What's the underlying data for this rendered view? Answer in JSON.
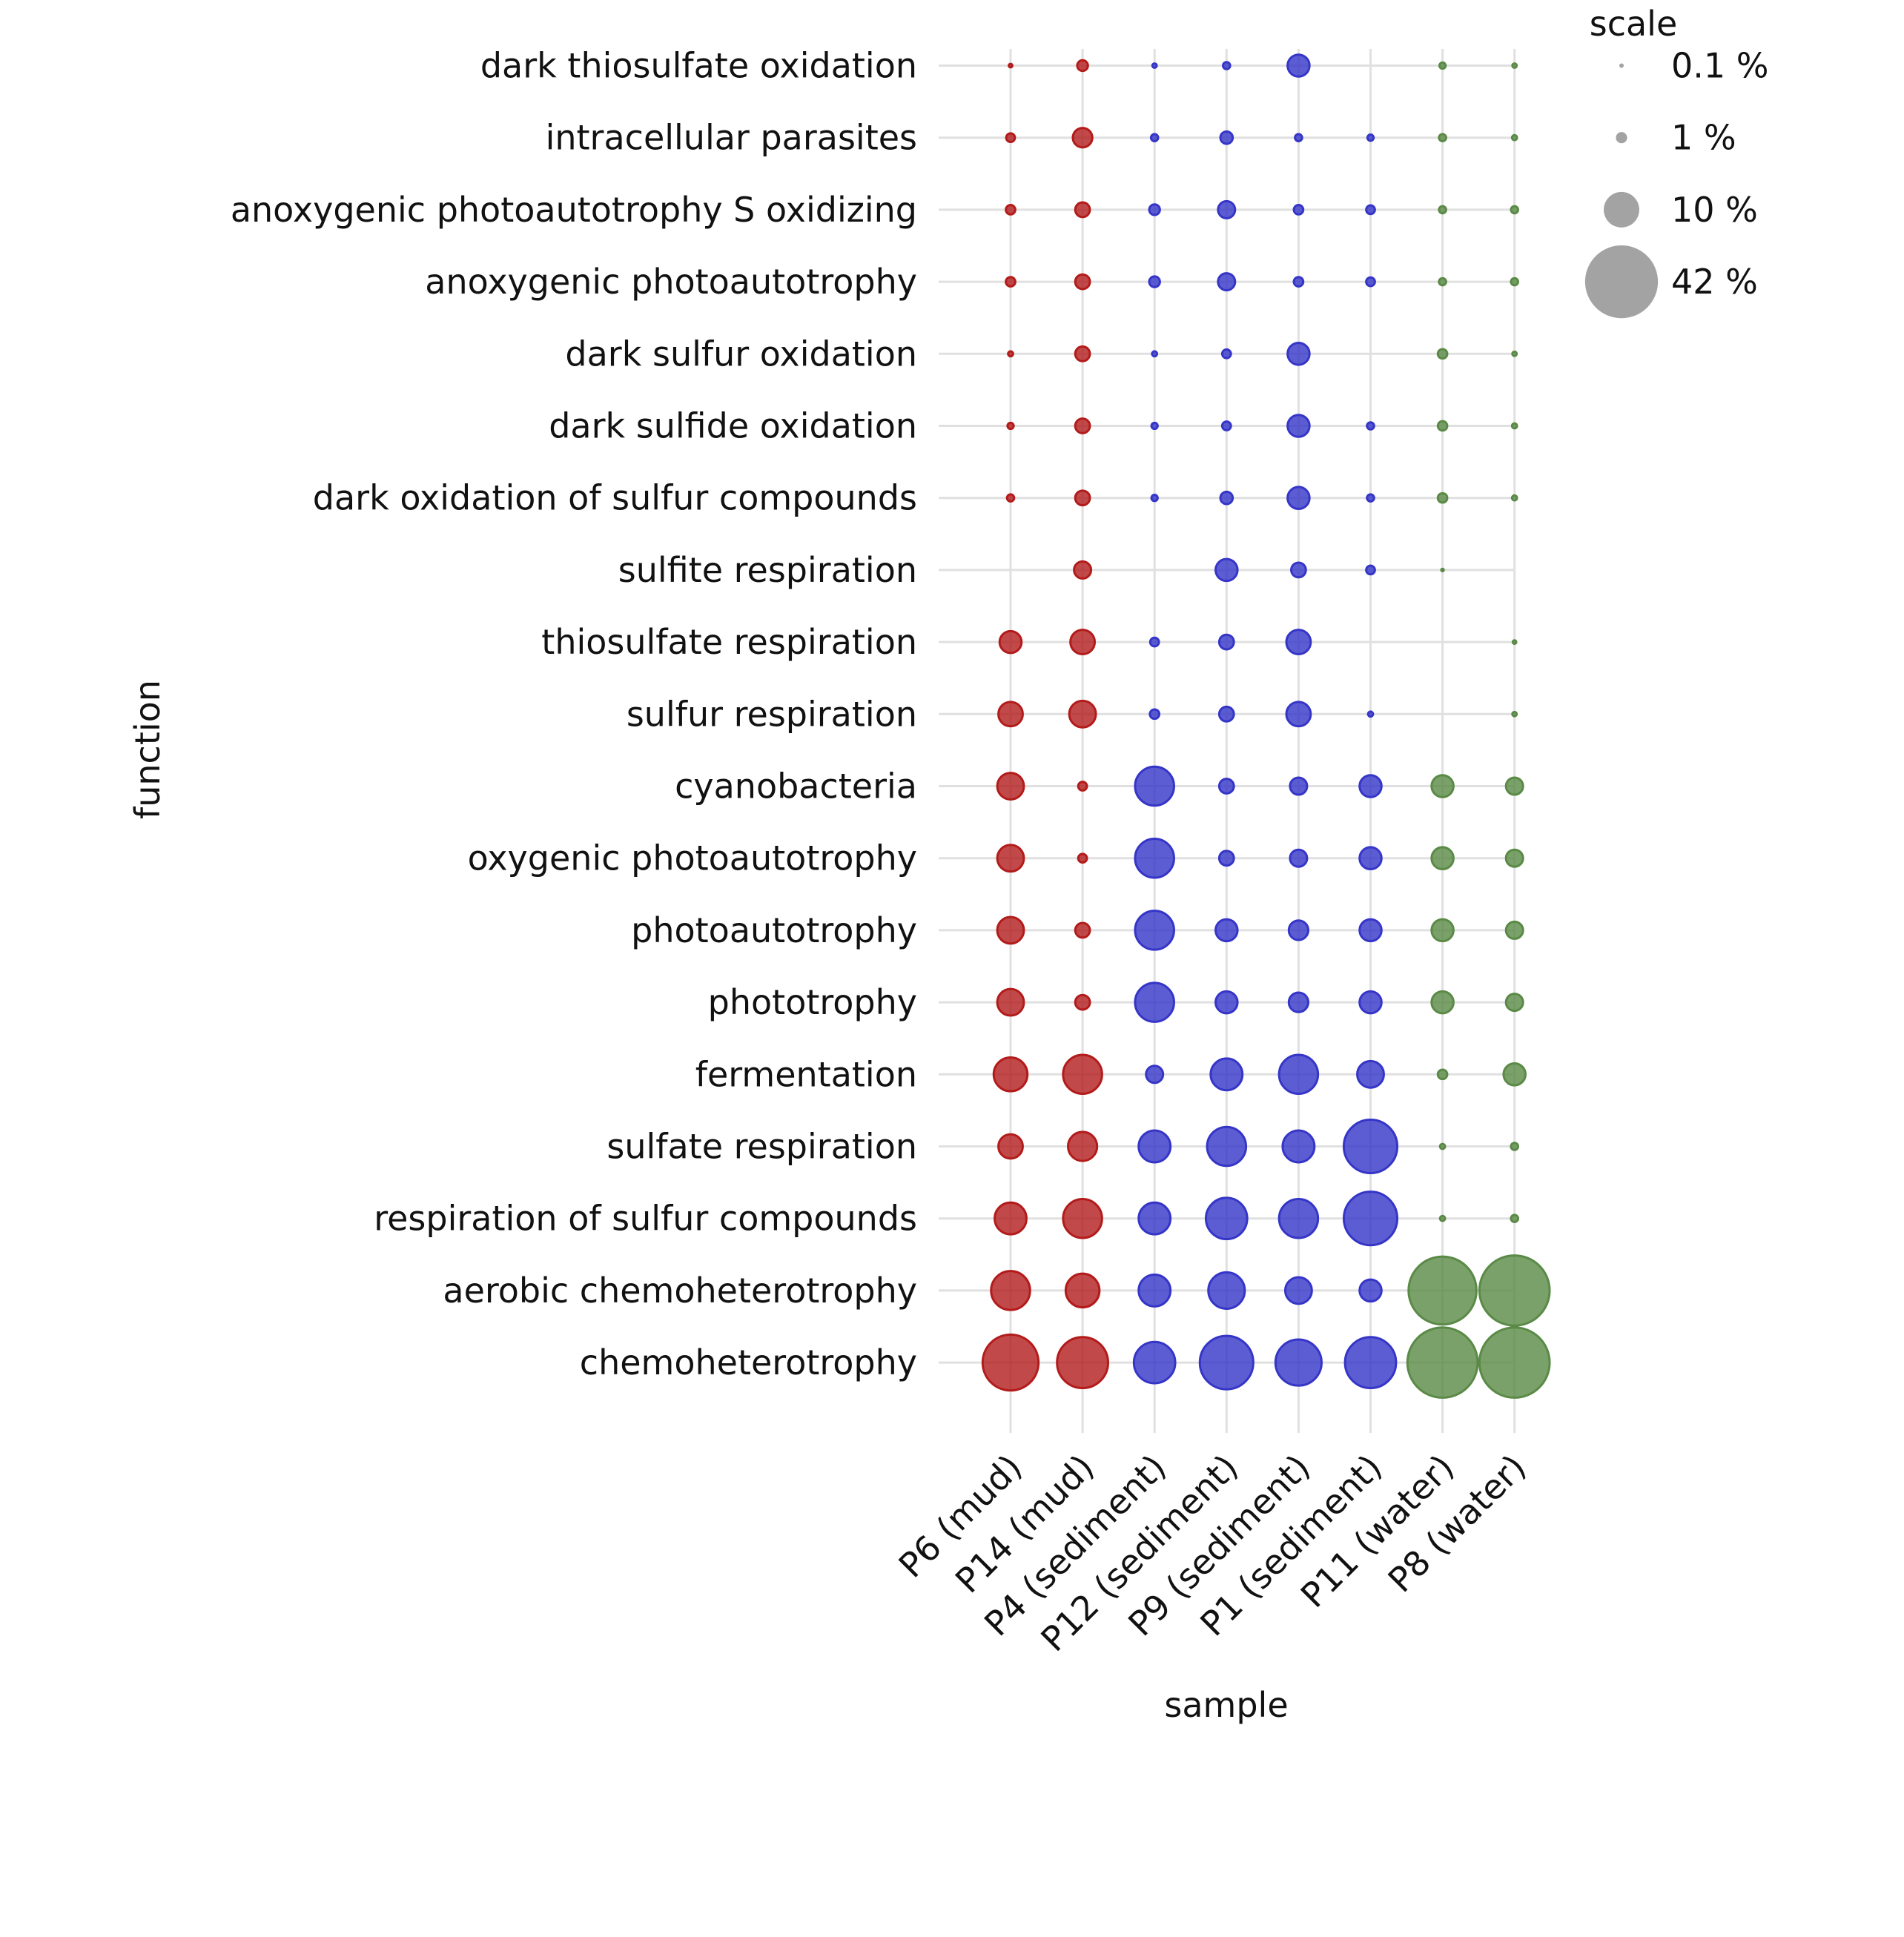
{
  "chart_data": {
    "type": "scatter",
    "subtype": "bubble",
    "xlabel": "sample",
    "ylabel": "function",
    "legend_title": "scale",
    "legend_position": "top-right",
    "legend_entries": [
      {
        "label": "0.1 %",
        "value": 0.1
      },
      {
        "label": "1 %",
        "value": 1
      },
      {
        "label": "10 %",
        "value": 10
      },
      {
        "label": "42 %",
        "value": 42
      }
    ],
    "grid": true,
    "samples": [
      "P6 (mud)",
      "P14 (mud)",
      "P4 (sediment)",
      "P12 (sediment)",
      "P9 (sediment)",
      "P1 (sediment)",
      "P11 (water)",
      "P8 (water)"
    ],
    "sample_groups": [
      "mud",
      "mud",
      "sediment",
      "sediment",
      "sediment",
      "sediment",
      "water",
      "water"
    ],
    "group_colors": {
      "mud": "#b31b1b",
      "sediment": "#3535c8",
      "water": "#5a8a46",
      "legend": "#999999"
    },
    "functions": [
      "dark thiosulfate oxidation",
      "intracellular parasites",
      "anoxygenic photoautotrophy S oxidizing",
      "anoxygenic photoautotrophy",
      "dark sulfur oxidation",
      "dark sulfide oxidation",
      "dark oxidation of sulfur compounds",
      "sulfite respiration",
      "thiosulfate respiration",
      "sulfur respiration",
      "cyanobacteria",
      "oxygenic photoautotrophy",
      "photoautotrophy",
      "phototrophy",
      "fermentation",
      "sulfate respiration",
      "respiration of sulfur compounds",
      "aerobic chemoheterotrophy",
      "chemoheterotrophy"
    ],
    "values_percent": [
      [
        0.1,
        0.9,
        0.15,
        0.4,
        3.8,
        null,
        0.3,
        0.15
      ],
      [
        0.6,
        3.0,
        0.4,
        1.2,
        0.4,
        0.3,
        0.4,
        0.2
      ],
      [
        0.7,
        1.7,
        0.9,
        2.3,
        0.7,
        0.6,
        0.4,
        0.4
      ],
      [
        0.7,
        1.7,
        0.9,
        2.3,
        0.7,
        0.6,
        0.4,
        0.4
      ],
      [
        0.2,
        1.7,
        0.2,
        0.6,
        3.8,
        null,
        0.7,
        0.15
      ],
      [
        0.3,
        1.7,
        0.3,
        0.6,
        3.8,
        0.4,
        0.7,
        0.2
      ],
      [
        0.4,
        1.7,
        0.3,
        1.2,
        3.8,
        0.4,
        0.7,
        0.2
      ],
      [
        null,
        2.3,
        null,
        3.8,
        1.7,
        0.6,
        0.05,
        null
      ],
      [
        3.8,
        4.7,
        0.6,
        1.7,
        4.7,
        null,
        null,
        0.1
      ],
      [
        4.7,
        5.6,
        0.7,
        1.7,
        4.7,
        0.2,
        null,
        0.15
      ],
      [
        5.6,
        0.6,
        12,
        1.7,
        2.3,
        3.8,
        3.8,
        2.3
      ],
      [
        5.6,
        0.6,
        12,
        1.7,
        2.3,
        3.8,
        3.8,
        2.3
      ],
      [
        5.6,
        1.7,
        12,
        3.8,
        3.0,
        3.8,
        3.8,
        2.3
      ],
      [
        5.6,
        1.7,
        12,
        3.8,
        3.0,
        3.8,
        3.8,
        2.3
      ],
      [
        9,
        12,
        2.3,
        8,
        12,
        5.6,
        0.7,
        3.8
      ],
      [
        4.7,
        6.7,
        8,
        12,
        8,
        22.6,
        0.2,
        0.4
      ],
      [
        8,
        12,
        8,
        13.5,
        12,
        22.6,
        0.2,
        0.4
      ],
      [
        12,
        9,
        8,
        10.5,
        5.6,
        3.8,
        36.5,
        39
      ],
      [
        24.7,
        20.6,
        13.5,
        22.6,
        16.8,
        20.6,
        39,
        39
      ]
    ]
  }
}
